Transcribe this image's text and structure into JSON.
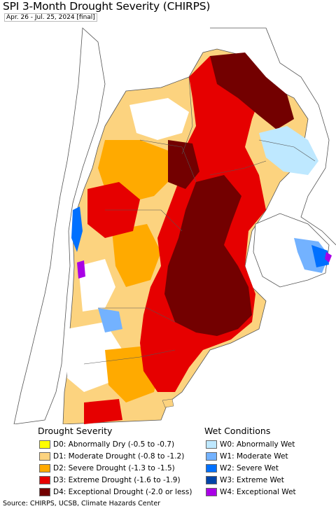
{
  "header": {
    "title": "SPI 3-Month Drought Severity (CHIRPS)",
    "subtitle": "Apr. 26 - Jul. 25, 2024 [final]"
  },
  "colors": {
    "ocean": "#ffffff",
    "land_outside": "#ffffff",
    "border": "#555555"
  },
  "legend": {
    "drought_heading": "Drought Severity",
    "wet_heading": "Wet Conditions",
    "drought_items": [
      {
        "code": "D0",
        "label": "D0: Abnormally Dry (-0.5 to -0.7)",
        "color": "#ffff00"
      },
      {
        "code": "D1",
        "label": "D1: Moderate Drought (-0.8 to -1.2)",
        "color": "#fcd37f"
      },
      {
        "code": "D2",
        "label": "D2: Severe Drought (-1.3 to -1.5)",
        "color": "#ffaa00"
      },
      {
        "code": "D3",
        "label": "D3: Extreme Drought (-1.6 to -1.9)",
        "color": "#e60000"
      },
      {
        "code": "D4",
        "label": "D4: Exceptional Drought (-2.0 or less)",
        "color": "#730000"
      }
    ],
    "wet_items": [
      {
        "code": "W0",
        "label": "W0: Abnormally Wet",
        "color": "#bee8ff"
      },
      {
        "code": "W1",
        "label": "W1: Moderate Wet",
        "color": "#73b2ff"
      },
      {
        "code": "W2",
        "label": "W2: Severe Wet",
        "color": "#0070ff"
      },
      {
        "code": "W3",
        "label": "W3: Extreme Wet",
        "color": "#0044a8"
      },
      {
        "code": "W4",
        "label": "W4: Exceptional Wet",
        "color": "#a900e6"
      }
    ]
  },
  "footer": {
    "source": "Source: CHIRPS, UCSB, Climate Hazards Center"
  }
}
